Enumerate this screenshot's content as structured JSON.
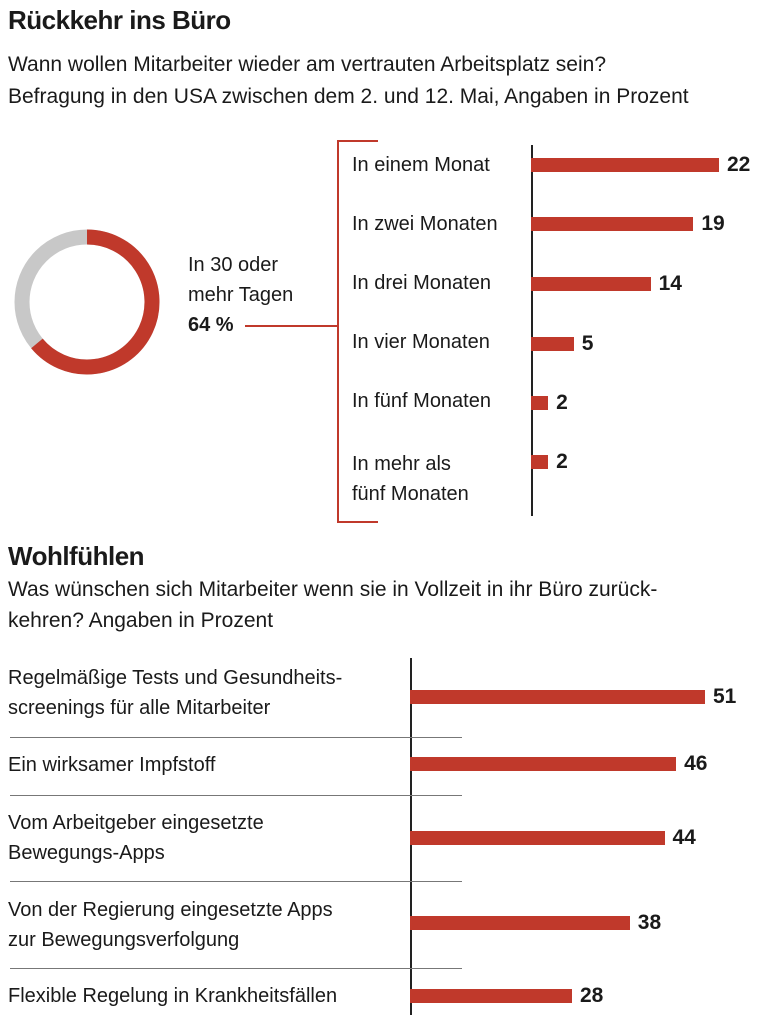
{
  "chart_data": [
    {
      "type": "donut",
      "title": "Rückkehr ins Büro",
      "subtitle": [
        "Wann wollen  Mitarbeiter wieder am vertrauten Arbeitsplatz sein?",
        "Befragung in den USA zwischen dem 2. und 12. Mai, Angaben in Prozent"
      ],
      "label": "In 30 oder\nmehr Tagen",
      "value": 64,
      "value_label": "64 %",
      "color": "#c0392b",
      "track_color": "#c8c8c8"
    },
    {
      "type": "bar",
      "categories": [
        "In einem Monat",
        "In zwei Monaten",
        "In drei Monaten",
        "In vier Monaten",
        "In fünf Monaten",
        "In mehr als\nfünf Monaten"
      ],
      "values": [
        22,
        19,
        14,
        5,
        2,
        2
      ],
      "color": "#c0392b"
    },
    {
      "type": "bar",
      "title": "Wohlfühlen",
      "subtitle": [
        "Was wünschen sich Mitarbeiter wenn sie in Vollzeit in ihr Büro zurück-",
        "kehren? Angaben in Prozent"
      ],
      "categories": [
        "Regelmäßige Tests und Gesundheits-\nscreenings für alle Mitarbeiter",
        "Ein wirksamer Impfstoff",
        "Vom Arbeitgeber eingesetzte\nBewegungs-Apps",
        "Von der Regierung eingesetzte Apps\nzur Bewegungsverfolgung",
        "Flexible Regelung in Krankheitsfällen"
      ],
      "values": [
        51,
        46,
        44,
        38,
        28
      ],
      "color": "#c0392b"
    }
  ]
}
